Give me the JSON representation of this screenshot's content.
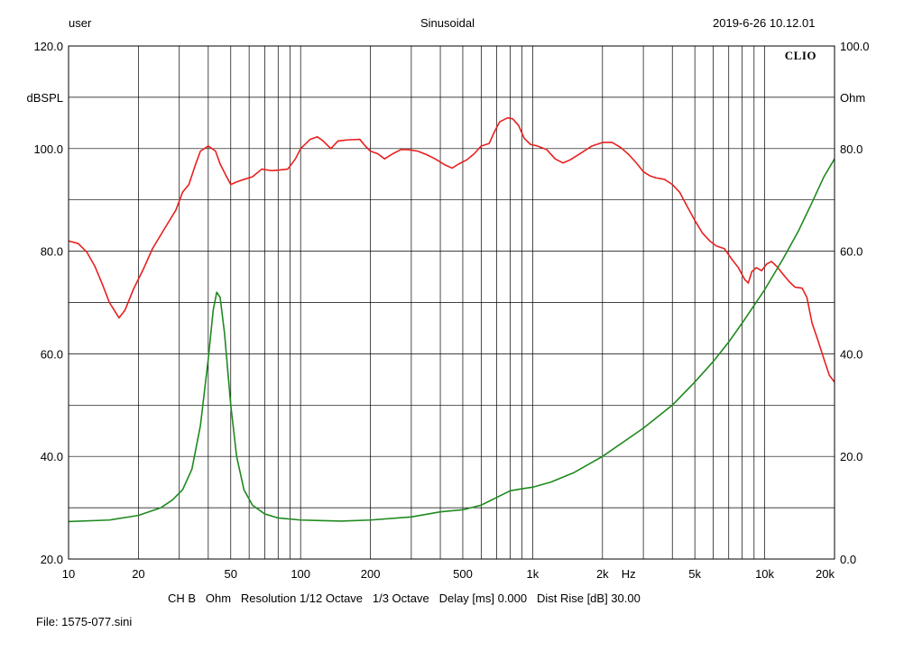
{
  "header": {
    "user": "user",
    "mode": "Sinusoidal",
    "datetime": "2019-6-26 10.12.01"
  },
  "logo": "CLIO",
  "footer": {
    "settings": "CH B   Ohm   Resolution 1/12 Octave   1/3 Octave   Delay [ms] 0.000   Dist Rise [dB] 30.00",
    "file": "File: 1575-077.sini"
  },
  "chart_data": {
    "type": "line",
    "x_scale": "log",
    "xlim": [
      10,
      20000
    ],
    "x_unit_label": "Hz",
    "x_ticks": [
      {
        "value": 10,
        "label": "10"
      },
      {
        "value": 20,
        "label": "20"
      },
      {
        "value": 50,
        "label": "50"
      },
      {
        "value": 100,
        "label": "100"
      },
      {
        "value": 200,
        "label": "200"
      },
      {
        "value": 500,
        "label": "500"
      },
      {
        "value": 1000,
        "label": "1k"
      },
      {
        "value": 2000,
        "label": "2k"
      },
      {
        "value": 5000,
        "label": "5k"
      },
      {
        "value": 10000,
        "label": "10k"
      },
      {
        "value": 20000,
        "label": "20k"
      }
    ],
    "y_left": {
      "label": "dBSPL",
      "lim": [
        20,
        120
      ],
      "ticks": [
        {
          "value": 20,
          "label": "20.0"
        },
        {
          "value": 40,
          "label": "40.0"
        },
        {
          "value": 60,
          "label": "60.0"
        },
        {
          "value": 80,
          "label": "80.0"
        },
        {
          "value": 100,
          "label": "100.0"
        },
        {
          "value": 120,
          "label": "120.0"
        }
      ]
    },
    "y_right": {
      "label": "Ohm",
      "lim": [
        0,
        100
      ],
      "ticks": [
        {
          "value": 0,
          "label": "0.0"
        },
        {
          "value": 20,
          "label": "20.0"
        },
        {
          "value": 40,
          "label": "40.0"
        },
        {
          "value": 60,
          "label": "60.0"
        },
        {
          "value": 80,
          "label": "80.0"
        },
        {
          "value": 100,
          "label": "100.0"
        }
      ]
    },
    "grid": true,
    "series": [
      {
        "axis": "left",
        "color": "#e8201e",
        "points": [
          [
            10,
            82.0
          ],
          [
            11,
            81.5
          ],
          [
            12,
            79.8
          ],
          [
            13,
            77.0
          ],
          [
            14,
            73.5
          ],
          [
            15,
            70.0
          ],
          [
            16.5,
            67.0
          ],
          [
            17.5,
            68.5
          ],
          [
            19,
            72.5
          ],
          [
            21,
            76.5
          ],
          [
            23,
            80.5
          ],
          [
            26,
            84.5
          ],
          [
            29,
            88.0
          ],
          [
            31,
            91.5
          ],
          [
            33,
            93.0
          ],
          [
            35,
            96.5
          ],
          [
            37,
            99.5
          ],
          [
            40,
            100.5
          ],
          [
            43,
            99.5
          ],
          [
            45,
            97.0
          ],
          [
            48,
            94.5
          ],
          [
            50,
            93.0
          ],
          [
            53,
            93.5
          ],
          [
            57,
            94.0
          ],
          [
            62,
            94.5
          ],
          [
            68,
            96.0
          ],
          [
            75,
            95.7
          ],
          [
            80,
            95.8
          ],
          [
            88,
            96.0
          ],
          [
            95,
            98.0
          ],
          [
            100,
            100.0
          ],
          [
            110,
            101.8
          ],
          [
            118,
            102.3
          ],
          [
            125,
            101.5
          ],
          [
            135,
            100.0
          ],
          [
            145,
            101.5
          ],
          [
            160,
            101.7
          ],
          [
            180,
            101.8
          ],
          [
            190,
            100.5
          ],
          [
            200,
            99.5
          ],
          [
            215,
            99.0
          ],
          [
            230,
            98.0
          ],
          [
            250,
            99.0
          ],
          [
            270,
            99.8
          ],
          [
            290,
            99.8
          ],
          [
            320,
            99.5
          ],
          [
            350,
            98.8
          ],
          [
            380,
            98.0
          ],
          [
            420,
            96.8
          ],
          [
            450,
            96.2
          ],
          [
            480,
            97.0
          ],
          [
            520,
            97.8
          ],
          [
            560,
            99.0
          ],
          [
            600,
            100.5
          ],
          [
            650,
            101.0
          ],
          [
            680,
            103.0
          ],
          [
            720,
            105.2
          ],
          [
            780,
            106.0
          ],
          [
            820,
            105.8
          ],
          [
            870,
            104.5
          ],
          [
            920,
            102.0
          ],
          [
            980,
            100.8
          ],
          [
            1050,
            100.5
          ],
          [
            1150,
            99.8
          ],
          [
            1250,
            98.0
          ],
          [
            1350,
            97.2
          ],
          [
            1450,
            97.8
          ],
          [
            1600,
            99.0
          ],
          [
            1800,
            100.5
          ],
          [
            2000,
            101.2
          ],
          [
            2200,
            101.2
          ],
          [
            2400,
            100.2
          ],
          [
            2600,
            98.8
          ],
          [
            2800,
            97.2
          ],
          [
            3000,
            95.5
          ],
          [
            3200,
            94.7
          ],
          [
            3400,
            94.3
          ],
          [
            3700,
            94.0
          ],
          [
            4000,
            93.0
          ],
          [
            4300,
            91.5
          ],
          [
            4600,
            89.0
          ],
          [
            5000,
            86.0
          ],
          [
            5400,
            83.5
          ],
          [
            5800,
            82.0
          ],
          [
            6200,
            81.0
          ],
          [
            6700,
            80.5
          ],
          [
            7200,
            78.5
          ],
          [
            7700,
            76.8
          ],
          [
            8200,
            74.5
          ],
          [
            8500,
            73.8
          ],
          [
            8800,
            76.0
          ],
          [
            9200,
            76.8
          ],
          [
            9700,
            76.2
          ],
          [
            10200,
            77.5
          ],
          [
            10700,
            78.0
          ],
          [
            11300,
            77.0
          ],
          [
            12000,
            75.5
          ],
          [
            12800,
            74.0
          ],
          [
            13500,
            73.0
          ],
          [
            14500,
            72.8
          ],
          [
            15200,
            71.0
          ],
          [
            16000,
            66.0
          ],
          [
            17000,
            62.5
          ],
          [
            18000,
            59.0
          ],
          [
            19000,
            55.8
          ],
          [
            20000,
            54.5
          ]
        ]
      },
      {
        "axis": "right",
        "color": "#1e8a1e",
        "points": [
          [
            10,
            7.3
          ],
          [
            15,
            7.6
          ],
          [
            20,
            8.5
          ],
          [
            25,
            10.0
          ],
          [
            28,
            11.5
          ],
          [
            31,
            13.5
          ],
          [
            34,
            17.5
          ],
          [
            37,
            26.0
          ],
          [
            40,
            39.0
          ],
          [
            42,
            48.5
          ],
          [
            43.5,
            52.0
          ],
          [
            45,
            51.0
          ],
          [
            47,
            44.0
          ],
          [
            50,
            30.0
          ],
          [
            53,
            20.0
          ],
          [
            57,
            13.5
          ],
          [
            62,
            10.5
          ],
          [
            70,
            8.8
          ],
          [
            80,
            8.0
          ],
          [
            100,
            7.6
          ],
          [
            120,
            7.5
          ],
          [
            150,
            7.4
          ],
          [
            200,
            7.6
          ],
          [
            300,
            8.2
          ],
          [
            400,
            9.2
          ],
          [
            500,
            9.6
          ],
          [
            600,
            10.5
          ],
          [
            700,
            12.0
          ],
          [
            800,
            13.3
          ],
          [
            900,
            13.7
          ],
          [
            1000,
            14.0
          ],
          [
            1200,
            15.0
          ],
          [
            1500,
            16.8
          ],
          [
            2000,
            20.0
          ],
          [
            3000,
            25.5
          ],
          [
            4000,
            30.0
          ],
          [
            5000,
            34.5
          ],
          [
            6000,
            38.5
          ],
          [
            7000,
            42.3
          ],
          [
            8000,
            46.0
          ],
          [
            10000,
            52.5
          ],
          [
            12000,
            58.5
          ],
          [
            14000,
            64.0
          ],
          [
            16000,
            69.5
          ],
          [
            18000,
            74.5
          ],
          [
            20000,
            78.0
          ]
        ]
      }
    ]
  }
}
